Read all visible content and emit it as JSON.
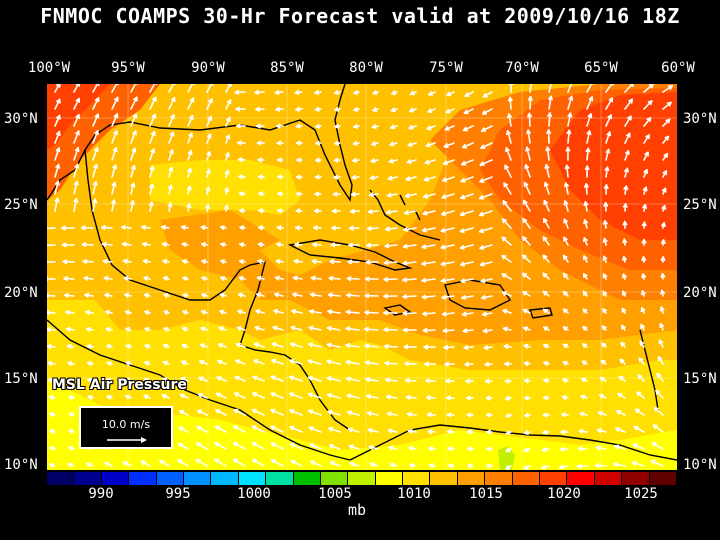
{
  "title": "FNMOC COAMPS 30-Hr Forecast valid at 2009/10/16 18Z",
  "top_lon_labels": [
    "100°W",
    "95°W",
    "90°W",
    "85°W",
    "80°W",
    "75°W",
    "70°W",
    "65°W",
    "60°W"
  ],
  "left_lat_labels": [
    "30°N",
    "25°N",
    "20°N",
    "15°N",
    "10°N"
  ],
  "right_lat_labels": [
    "30°N",
    "25°N",
    "20°N",
    "15°N",
    "10°N"
  ],
  "field_label": "MSL Air Pressure",
  "reference_vector_label": "10.0 m/s",
  "colorbar": {
    "ticks": [
      "990",
      "995",
      "1000",
      "1005",
      "1010",
      "1015",
      "1020",
      "1025"
    ],
    "unit": "mb",
    "colors": [
      "#000066",
      "#00008f",
      "#0000c8",
      "#0030ff",
      "#0060ff",
      "#0090ff",
      "#00b8ff",
      "#00e0ff",
      "#00e0a0",
      "#00c000",
      "#80e000",
      "#c0f000",
      "#ffff00",
      "#ffe000",
      "#ffc000",
      "#ffa000",
      "#ff8000",
      "#ff6000",
      "#ff4000",
      "#ff0000",
      "#d00000",
      "#900000",
      "#600000"
    ]
  },
  "map_colors": {
    "ocean_base": "#ffc000",
    "light_band": "#ffe000",
    "mid_band": "#ffa000",
    "high_band": "#ff8000",
    "peak_band": "#ff6000",
    "peak2_band": "#ff4000",
    "max_band": "#ff0000",
    "low_band": "#ffff00",
    "coast": "#000000",
    "wind": "#ffffff"
  }
}
